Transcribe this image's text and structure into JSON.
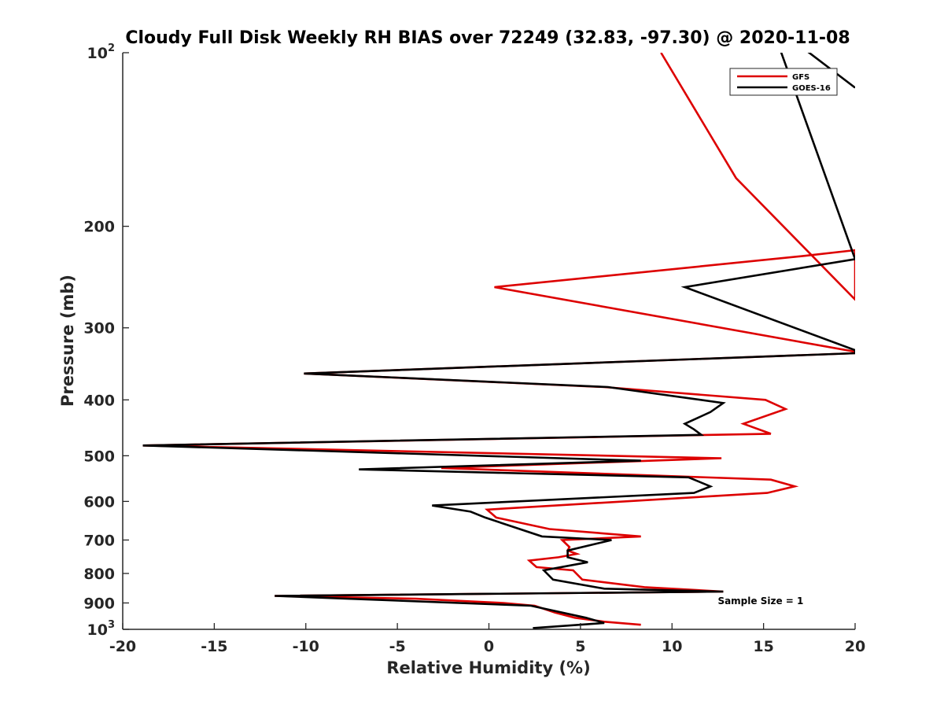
{
  "chart_data": {
    "type": "line",
    "title": "Cloudy Full Disk Weekly RH BIAS over 72249 (32.83, -97.30) @ 2020-11-08",
    "xlabel": "Relative Humidity (%)",
    "ylabel": "Pressure (mb)",
    "xlim": [
      -20,
      20
    ],
    "ylim": [
      100,
      1000
    ],
    "yscale": "log",
    "y_reversed": true,
    "grid": false,
    "legend_position": "top-right",
    "xticks": [
      {
        "value": -20,
        "label": "-20"
      },
      {
        "value": -15,
        "label": "-15"
      },
      {
        "value": -10,
        "label": "-10"
      },
      {
        "value": -5,
        "label": "-5"
      },
      {
        "value": 0,
        "label": "0"
      },
      {
        "value": 5,
        "label": "5"
      },
      {
        "value": 10,
        "label": "10"
      },
      {
        "value": 15,
        "label": "15"
      },
      {
        "value": 20,
        "label": "20"
      }
    ],
    "yticks": [
      {
        "value": 100,
        "base": "10",
        "exp": "2"
      },
      {
        "value": 200,
        "base": "200",
        "exp": ""
      },
      {
        "value": 300,
        "base": "300",
        "exp": ""
      },
      {
        "value": 400,
        "base": "400",
        "exp": ""
      },
      {
        "value": 500,
        "base": "500",
        "exp": ""
      },
      {
        "value": 600,
        "base": "600",
        "exp": ""
      },
      {
        "value": 700,
        "base": "700",
        "exp": ""
      },
      {
        "value": 800,
        "base": "800",
        "exp": ""
      },
      {
        "value": 900,
        "base": "900",
        "exp": ""
      },
      {
        "value": 1000,
        "base": "10",
        "exp": "3"
      }
    ],
    "series": [
      {
        "name": "GFS",
        "color": "#dd0000",
        "x": [
          8.3,
          6.3,
          4.7,
          3.6,
          2.5,
          0.8,
          -4.0,
          -11.7,
          12.8,
          8.5,
          5.1,
          4.6,
          2.6,
          2.2,
          3.8,
          4.8,
          4.3,
          4.4,
          4.2,
          4.0,
          8.3,
          3.3,
          0.4,
          -0.1,
          15.2,
          16.7,
          15.4,
          -2.6,
          12.7,
          -18.9,
          15.4,
          13.9,
          16.2,
          15.1,
          6.3,
          -10.1,
          20.0,
          20.0,
          0.3,
          17.3,
          20.0,
          20.0,
          13.5,
          9.4
        ],
        "y": [
          982,
          970,
          955,
          935,
          910,
          900,
          885,
          875,
          860,
          845,
          820,
          790,
          780,
          760,
          750,
          740,
          730,
          720,
          710,
          700,
          690,
          670,
          640,
          620,
          580,
          565,
          550,
          525,
          505,
          480,
          458,
          440,
          415,
          400,
          380,
          360,
          332,
          330,
          255,
          225,
          220,
          268,
          165,
          100
        ]
      },
      {
        "name": "GOES-16",
        "color": "#000000",
        "x": [
          2.4,
          6.3,
          5.3,
          2.3,
          -11.7,
          12.8,
          6.3,
          3.5,
          3.0,
          5.4,
          4.3,
          4.3,
          6.7,
          2.9,
          -0.2,
          -1.0,
          -3.1,
          11.2,
          12.1,
          10.9,
          -7.1,
          8.3,
          -18.9,
          11.6,
          11.2,
          10.7,
          12.1,
          12.8,
          6.5,
          -10.1,
          20.0,
          20.0,
          10.7,
          20.0,
          15.4,
          20.0
        ],
        "y": [
          995,
          975,
          955,
          910,
          875,
          860,
          850,
          820,
          790,
          765,
          750,
          730,
          700,
          690,
          640,
          625,
          610,
          580,
          565,
          545,
          528,
          510,
          480,
          460,
          450,
          440,
          420,
          405,
          380,
          360,
          332,
          328,
          255,
          228,
          89,
          115
        ]
      }
    ],
    "annotations": [
      {
        "text": "Sample Size = 1",
        "x": 12.5,
        "y": 893
      }
    ]
  }
}
